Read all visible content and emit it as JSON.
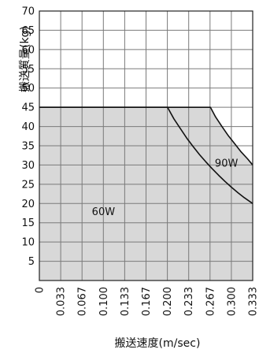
{
  "chart_data": {
    "type": "area",
    "title": "",
    "xlabel": "搬送速度(m/sec)",
    "ylabel": "搬送質量(kg)",
    "xlim": [
      0,
      0.333
    ],
    "ylim": [
      0,
      70
    ],
    "x_ticks": [
      "0",
      "0.033",
      "0.067",
      "0.100",
      "0.133",
      "0.167",
      "0.200",
      "0.233",
      "0.267",
      "0.300",
      "0.333"
    ],
    "y_ticks": [
      "5",
      "10",
      "15",
      "20",
      "25",
      "30",
      "35",
      "40",
      "45",
      "50",
      "55",
      "60",
      "65",
      "70"
    ],
    "grid": true,
    "colors": {
      "fill": "#d8d8d8",
      "grid": "#7a7a7a",
      "curve": "#111111",
      "background": "#ffffff"
    },
    "series": [
      {
        "name": "60W",
        "x": [
          0,
          0.2,
          0.21,
          0.22,
          0.23,
          0.24,
          0.25,
          0.26,
          0.27,
          0.28,
          0.29,
          0.3,
          0.31,
          0.32,
          0.333
        ],
        "y": [
          45,
          45,
          42.0,
          39.5,
          37.0,
          34.8,
          32.7,
          30.8,
          29.0,
          27.3,
          25.7,
          24.2,
          22.8,
          21.5,
          20
        ]
      },
      {
        "name": "90W",
        "x": [
          0,
          0.267,
          0.275,
          0.285,
          0.295,
          0.305,
          0.315,
          0.325,
          0.333
        ],
        "y": [
          45,
          45,
          42.5,
          40.0,
          37.6,
          35.5,
          33.4,
          31.6,
          30
        ]
      }
    ]
  }
}
